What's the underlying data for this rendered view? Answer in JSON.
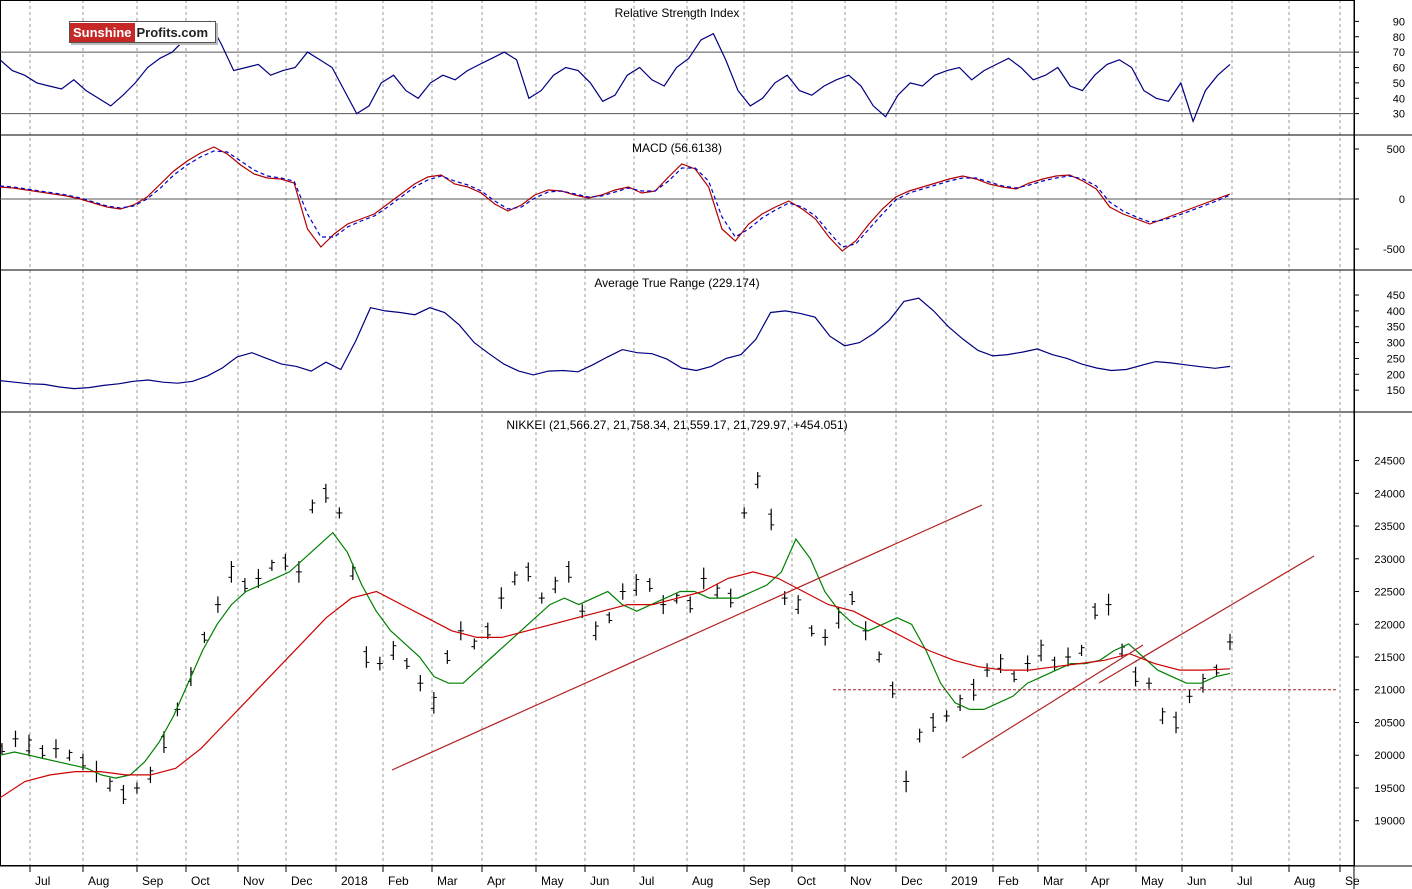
{
  "logo": {
    "part1": "Sunshine",
    "part2": "Profits.com"
  },
  "colors": {
    "price": "#000000",
    "ma_short": "#008000",
    "ma_long": "#cc0000",
    "trend": "#b22222",
    "rsi": "#000080",
    "macd": "#b00000",
    "signal": "#0000cc",
    "grid": "#9a9a9a"
  },
  "chart_data": [
    {
      "type": "line",
      "title": "Relative Strength Index",
      "y_ticks": [
        "90",
        "80",
        "70",
        "60",
        "50",
        "40",
        "30"
      ],
      "ylim": [
        20,
        100
      ],
      "reference_lines": [
        70,
        30
      ],
      "series": [
        {
          "values": [
            65,
            58,
            55,
            50,
            48,
            46,
            52,
            45,
            40,
            35,
            42,
            50,
            60,
            66,
            70,
            78,
            86,
            90,
            75,
            58,
            60,
            62,
            55,
            58,
            60,
            70,
            65,
            60,
            45,
            30,
            35,
            50,
            55,
            45,
            40,
            50,
            55,
            52,
            58,
            62,
            66,
            70,
            65,
            40,
            45,
            55,
            60,
            58,
            50,
            38,
            42,
            55,
            60,
            52,
            48,
            60,
            66,
            78,
            82,
            65,
            45,
            35,
            40,
            50,
            55,
            45,
            42,
            48,
            52,
            55,
            48,
            35,
            28,
            42,
            50,
            48,
            55,
            58,
            60,
            52,
            58,
            62,
            66,
            60,
            52,
            55,
            60,
            48,
            45,
            55,
            62,
            65,
            60,
            45,
            40,
            38,
            50,
            25,
            45,
            55,
            62
          ]
        }
      ]
    },
    {
      "type": "line",
      "title": "MACD (56.6138)",
      "y_ticks": [
        "500",
        "0",
        "-500"
      ],
      "ylim": [
        -650,
        580
      ],
      "reference_lines": [
        0
      ],
      "series": [
        {
          "name": "MACD",
          "values": [
            120,
            110,
            90,
            70,
            50,
            30,
            0,
            -40,
            -80,
            -100,
            -60,
            20,
            150,
            280,
            380,
            460,
            520,
            450,
            340,
            250,
            210,
            200,
            160,
            -300,
            -480,
            -350,
            -250,
            -200,
            -150,
            -50,
            50,
            150,
            220,
            240,
            150,
            120,
            60,
            -50,
            -120,
            -60,
            40,
            90,
            80,
            40,
            10,
            40,
            90,
            120,
            60,
            80,
            220,
            350,
            300,
            120,
            -300,
            -420,
            -250,
            -150,
            -80,
            -20,
            -100,
            -200,
            -380,
            -520,
            -420,
            -250,
            -100,
            20,
            80,
            120,
            160,
            200,
            230,
            200,
            150,
            120,
            100,
            160,
            200,
            230,
            240,
            180,
            100,
            -80,
            -150,
            -200,
            -250,
            -200,
            -150,
            -100,
            -50,
            0,
            50
          ]
        },
        {
          "name": "Signal",
          "values": [
            130,
            120,
            100,
            80,
            60,
            40,
            10,
            -30,
            -70,
            -90,
            -70,
            0,
            110,
            240,
            340,
            420,
            480,
            470,
            380,
            290,
            230,
            210,
            180,
            -150,
            -380,
            -380,
            -280,
            -220,
            -170,
            -80,
            20,
            120,
            190,
            230,
            180,
            140,
            80,
            -20,
            -100,
            -80,
            10,
            70,
            80,
            50,
            20,
            30,
            70,
            110,
            80,
            80,
            180,
            310,
            310,
            180,
            -180,
            -380,
            -300,
            -190,
            -110,
            -40,
            -80,
            -170,
            -330,
            -480,
            -450,
            -300,
            -150,
            -10,
            60,
            100,
            140,
            180,
            210,
            210,
            170,
            130,
            110,
            140,
            180,
            210,
            230,
            200,
            130,
            -30,
            -120,
            -180,
            -230,
            -210,
            -170,
            -120,
            -70,
            -20,
            40
          ]
        }
      ]
    },
    {
      "type": "line",
      "title": "Average True Range (229.174)",
      "y_ticks": [
        "450",
        "400",
        "350",
        "300",
        "250",
        "200",
        "150"
      ],
      "ylim": [
        100,
        510
      ],
      "series": [
        {
          "values": [
            180,
            175,
            170,
            168,
            160,
            155,
            158,
            165,
            170,
            178,
            182,
            175,
            172,
            178,
            195,
            220,
            255,
            268,
            250,
            232,
            225,
            210,
            238,
            215,
            305,
            410,
            400,
            395,
            388,
            410,
            395,
            355,
            300,
            265,
            232,
            210,
            198,
            210,
            212,
            208,
            230,
            255,
            278,
            268,
            265,
            248,
            220,
            212,
            225,
            250,
            262,
            310,
            395,
            400,
            392,
            380,
            320,
            290,
            300,
            330,
            370,
            430,
            440,
            400,
            350,
            310,
            275,
            258,
            262,
            270,
            280,
            262,
            250,
            232,
            220,
            212,
            215,
            228,
            240,
            236,
            230,
            224,
            219,
            225
          ]
        }
      ]
    },
    {
      "type": "line",
      "title": "NIKKEI (21,566.27, 21,758.34, 21,559.17, 21,729.97, +454.051)",
      "x_ticks": [
        "Jul",
        "Aug",
        "Sep",
        "Oct",
        "Nov",
        "Dec",
        "2018",
        "Feb",
        "Mar",
        "Apr",
        "May",
        "Jun",
        "Jul",
        "Aug",
        "Sep",
        "Oct",
        "Nov",
        "Dec",
        "2019",
        "Feb",
        "Mar",
        "Apr",
        "May",
        "Jun",
        "Jul",
        "Aug",
        "Se"
      ],
      "y_ticks": [
        "24500",
        "24000",
        "23500",
        "23000",
        "22500",
        "22000",
        "21500",
        "21000",
        "20500",
        "20000",
        "19500",
        "19000"
      ],
      "ylim": [
        18400,
        25150
      ],
      "series": [
        {
          "name": "Price",
          "values": [
            20100,
            20250,
            20150,
            20050,
            20100,
            20000,
            19900,
            19750,
            19550,
            19400,
            19500,
            19700,
            20200,
            20700,
            21200,
            21800,
            22300,
            22800,
            22600,
            22700,
            22900,
            22950,
            22800,
            23800,
            24000,
            23700,
            22800,
            21500,
            21400,
            21600,
            21400,
            21100,
            20800,
            21500,
            21900,
            21700,
            21900,
            22400,
            22700,
            22800,
            22400,
            22600,
            22800,
            22200,
            21900,
            22100,
            22500,
            22600,
            22600,
            22300,
            22400,
            22300,
            22700,
            22500,
            22400,
            23700,
            24200,
            23600,
            22400,
            22300,
            21900,
            21800,
            22100,
            22400,
            21900,
            21500,
            21000,
            19600,
            20300,
            20500,
            20600,
            20800,
            21000,
            21300,
            21400,
            21200,
            21400,
            21600,
            21400,
            21500,
            21600,
            22200,
            22300,
            21600,
            21200,
            21100,
            20600,
            20500,
            20900,
            21100,
            21300,
            21730
          ]
        },
        {
          "name": "MA short",
          "values": [
            20000,
            20050,
            20000,
            19950,
            19900,
            19850,
            19800,
            19700,
            19650,
            19700,
            19900,
            20200,
            20600,
            21100,
            21600,
            22000,
            22300,
            22500,
            22600,
            22700,
            22800,
            23000,
            23200,
            23400,
            23100,
            22600,
            22200,
            21900,
            21700,
            21500,
            21200,
            21100,
            21100,
            21300,
            21500,
            21700,
            21900,
            22100,
            22300,
            22400,
            22300,
            22400,
            22500,
            22300,
            22200,
            22300,
            22400,
            22500,
            22500,
            22400,
            22400,
            22400,
            22500,
            22600,
            22800,
            23300,
            23000,
            22500,
            22200,
            22000,
            21900,
            22000,
            22100,
            22000,
            21600,
            21100,
            20800,
            20700,
            20700,
            20800,
            20900,
            21100,
            21200,
            21300,
            21400,
            21400,
            21450,
            21600,
            21700,
            21500,
            21300,
            21200,
            21100,
            21100,
            21200,
            21250
          ]
        },
        {
          "name": "MA long",
          "values": [
            19350,
            19600,
            19700,
            19750,
            19750,
            19700,
            19700,
            19800,
            20100,
            20500,
            20900,
            21300,
            21700,
            22100,
            22400,
            22500,
            22300,
            22100,
            21900,
            21800,
            21800,
            21900,
            22000,
            22100,
            22200,
            22300,
            22300,
            22400,
            22500,
            22700,
            22800,
            22700,
            22500,
            22300,
            22200,
            22000,
            21800,
            21600,
            21450,
            21350,
            21300,
            21300,
            21350,
            21400,
            21450,
            21550,
            21400,
            21300,
            21300,
            21320
          ]
        }
      ],
      "annotations": [
        "trend line 1",
        "trend line 2",
        "trend line 3",
        "support line 21000"
      ]
    }
  ]
}
